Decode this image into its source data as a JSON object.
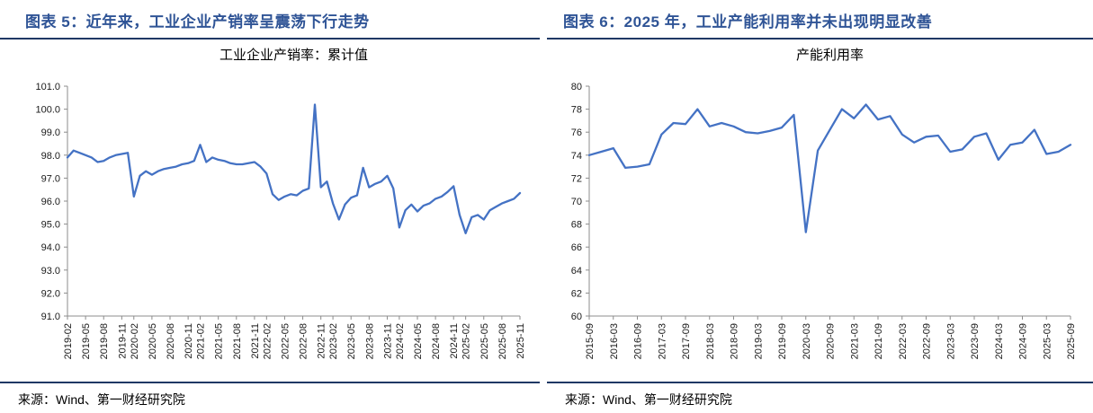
{
  "panels": [
    {
      "header": "图表 5：近年来，工业企业产销率呈震荡下行走势",
      "source": "来源：Wind、第一财经研究院"
    },
    {
      "header": "图表 6：2025 年，工业产能利用率并未出现明显改善",
      "source": "来源：Wind、第一财经研究院"
    }
  ],
  "colors": {
    "header_text": "#2F5496",
    "rule": "#1F3864",
    "line": "#4472C4",
    "axis": "#8C8C8C",
    "tick_label": "#1A1A1A"
  },
  "chart_data": [
    {
      "type": "line",
      "title": "工业企业产销率：累计值",
      "xlabel": "",
      "ylabel": "",
      "legend": "none",
      "grid": false,
      "line_color": "#4472C4",
      "ylim": [
        91.0,
        101.0
      ],
      "ytick_step": 1.0,
      "y_decimals": 1,
      "categories": [
        "2019-02",
        "2019-03",
        "2019-04",
        "2019-05",
        "2019-06",
        "2019-07",
        "2019-08",
        "2019-09",
        "2019-10",
        "2019-11",
        "2019-12",
        "2020-02",
        "2020-03",
        "2020-04",
        "2020-05",
        "2020-06",
        "2020-07",
        "2020-08",
        "2020-09",
        "2020-10",
        "2020-11",
        "2020-12",
        "2021-02",
        "2021-03",
        "2021-04",
        "2021-05",
        "2021-06",
        "2021-07",
        "2021-08",
        "2021-09",
        "2021-10",
        "2021-11",
        "2021-12",
        "2022-02",
        "2022-03",
        "2022-04",
        "2022-05",
        "2022-06",
        "2022-07",
        "2022-08",
        "2022-09",
        "2022-10",
        "2022-11",
        "2022-12",
        "2023-02",
        "2023-03",
        "2023-04",
        "2023-05",
        "2023-06",
        "2023-07",
        "2023-08",
        "2023-09",
        "2023-10",
        "2023-11",
        "2023-12",
        "2024-02",
        "2024-03",
        "2024-04",
        "2024-05",
        "2024-06",
        "2024-07",
        "2024-08",
        "2024-09",
        "2024-10",
        "2024-11",
        "2024-12",
        "2025-02",
        "2025-03",
        "2025-04",
        "2025-05",
        "2025-06",
        "2025-07",
        "2025-08",
        "2025-09",
        "2025-10",
        "2025-11"
      ],
      "values": [
        97.9,
        98.2,
        98.1,
        98.0,
        97.9,
        97.7,
        97.75,
        97.9,
        98.0,
        98.05,
        98.1,
        96.2,
        97.1,
        97.3,
        97.15,
        97.3,
        97.4,
        97.45,
        97.5,
        97.6,
        97.65,
        97.75,
        98.45,
        97.7,
        97.9,
        97.8,
        97.75,
        97.65,
        97.6,
        97.6,
        97.65,
        97.7,
        97.5,
        97.2,
        96.3,
        96.05,
        96.2,
        96.3,
        96.25,
        96.45,
        96.55,
        100.2,
        96.6,
        96.85,
        95.9,
        95.2,
        95.85,
        96.15,
        96.25,
        97.45,
        96.6,
        96.75,
        96.85,
        97.1,
        96.55,
        94.85,
        95.6,
        95.85,
        95.55,
        95.8,
        95.9,
        96.1,
        96.2,
        96.4,
        96.65,
        95.4,
        94.6,
        95.3,
        95.4,
        95.2,
        95.6,
        95.75,
        95.9,
        96.0,
        96.1,
        96.35
      ],
      "x_labels_shown": [
        "2019-02",
        "2019-05",
        "2019-08",
        "2019-11",
        "2020-02",
        "2020-05",
        "2020-08",
        "2020-11",
        "2021-02",
        "2021-05",
        "2021-08",
        "2021-11",
        "2022-02",
        "2022-05",
        "2022-08",
        "2022-11",
        "2023-02",
        "2023-05",
        "2023-08",
        "2023-11",
        "2024-02",
        "2024-05",
        "2024-08",
        "2024-11",
        "2025-02",
        "2025-05",
        "2025-08",
        "2025-11"
      ]
    },
    {
      "type": "line",
      "title": "产能利用率",
      "xlabel": "",
      "ylabel": "",
      "legend": "none",
      "grid": false,
      "line_color": "#4472C4",
      "ylim": [
        60,
        80
      ],
      "ytick_step": 2,
      "y_decimals": 0,
      "categories": [
        "2015-09",
        "2015-12",
        "2016-03",
        "2016-06",
        "2016-09",
        "2016-12",
        "2017-03",
        "2017-06",
        "2017-09",
        "2017-12",
        "2018-03",
        "2018-06",
        "2018-09",
        "2018-12",
        "2019-03",
        "2019-06",
        "2019-09",
        "2019-12",
        "2020-03",
        "2020-06",
        "2020-09",
        "2020-12",
        "2021-03",
        "2021-06",
        "2021-09",
        "2021-12",
        "2022-03",
        "2022-06",
        "2022-09",
        "2022-12",
        "2023-03",
        "2023-06",
        "2023-09",
        "2023-12",
        "2024-03",
        "2024-06",
        "2024-09",
        "2024-12",
        "2025-03",
        "2025-06",
        "2025-09"
      ],
      "values": [
        74.0,
        74.3,
        74.6,
        72.9,
        73.0,
        73.2,
        75.8,
        76.8,
        76.7,
        78.0,
        76.5,
        76.8,
        76.5,
        76.0,
        75.9,
        76.1,
        76.4,
        77.5,
        67.3,
        74.4,
        76.2,
        78.0,
        77.2,
        78.4,
        77.1,
        77.4,
        75.8,
        75.1,
        75.6,
        75.7,
        74.3,
        74.5,
        75.6,
        75.9,
        73.6,
        74.9,
        75.1,
        76.2,
        74.1,
        74.3,
        74.9
      ],
      "x_labels_shown": [
        "2015-09",
        "2016-03",
        "2016-09",
        "2017-03",
        "2017-09",
        "2018-03",
        "2018-09",
        "2019-03",
        "2019-09",
        "2020-03",
        "2020-09",
        "2021-03",
        "2021-09",
        "2022-03",
        "2022-09",
        "2023-03",
        "2023-09",
        "2024-03",
        "2024-09",
        "2025-03",
        "2025-09"
      ]
    }
  ]
}
